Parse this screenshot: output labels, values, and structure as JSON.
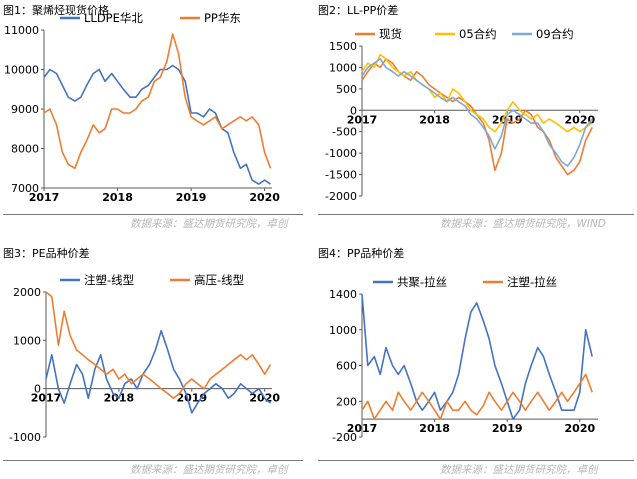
{
  "panels": [
    {
      "caption": "图1：聚烯烃现货价格",
      "source": "数据来源：盛达期货研究院，卓创"
    },
    {
      "caption": "图2：LL-PP价差",
      "source": "数据来源：盛达期货研究院，WIND"
    },
    {
      "caption": "图3：PE品种价差",
      "source": "数据来源：盛达期货研究院，卓创"
    },
    {
      "caption": "图4：PP品种价差",
      "source": "数据来源：盛达期货研究院，卓创"
    }
  ],
  "chart_data": [
    {
      "type": "line",
      "title": "",
      "ylim": [
        7000,
        11000
      ],
      "yticks": [
        7000,
        8000,
        9000,
        10000,
        11000
      ],
      "xlim": [
        2017,
        2020.1
      ],
      "xticks": [
        2017,
        2018,
        2019,
        2020
      ],
      "legend_position": "top",
      "series": [
        {
          "name": "LLDPE华北",
          "color": "#4472C4",
          "x": [
            2017.0,
            2017.08,
            2017.17,
            2017.25,
            2017.33,
            2017.42,
            2017.5,
            2017.58,
            2017.67,
            2017.75,
            2017.83,
            2017.92,
            2018.0,
            2018.08,
            2018.17,
            2018.25,
            2018.33,
            2018.42,
            2018.5,
            2018.58,
            2018.67,
            2018.75,
            2018.83,
            2018.92,
            2019.0,
            2019.08,
            2019.17,
            2019.25,
            2019.33,
            2019.42,
            2019.5,
            2019.58,
            2019.67,
            2019.75,
            2019.83,
            2019.92,
            2020.0,
            2020.08
          ],
          "y": [
            9800,
            10000,
            9900,
            9600,
            9300,
            9200,
            9300,
            9600,
            9900,
            10000,
            9700,
            9900,
            9700,
            9500,
            9300,
            9300,
            9500,
            9600,
            9800,
            10000,
            10000,
            10100,
            10000,
            9700,
            8900,
            8900,
            8800,
            9000,
            8900,
            8500,
            8400,
            7900,
            7500,
            7600,
            7200,
            7100,
            7200,
            7100
          ]
        },
        {
          "name": "PP华东",
          "color": "#ED7D31",
          "x": [
            2017.0,
            2017.08,
            2017.17,
            2017.25,
            2017.33,
            2017.42,
            2017.5,
            2017.58,
            2017.67,
            2017.75,
            2017.83,
            2017.92,
            2018.0,
            2018.08,
            2018.17,
            2018.25,
            2018.33,
            2018.42,
            2018.5,
            2018.58,
            2018.67,
            2018.75,
            2018.83,
            2018.92,
            2019.0,
            2019.08,
            2019.17,
            2019.25,
            2019.33,
            2019.42,
            2019.5,
            2019.58,
            2019.67,
            2019.75,
            2019.83,
            2019.92,
            2020.0,
            2020.08
          ],
          "y": [
            8900,
            9000,
            8600,
            7900,
            7600,
            7500,
            7900,
            8200,
            8600,
            8400,
            8500,
            9000,
            9000,
            8900,
            8900,
            9000,
            9200,
            9300,
            9700,
            9800,
            10200,
            10900,
            10400,
            9300,
            8800,
            8700,
            8600,
            8700,
            8800,
            8500,
            8600,
            8700,
            8800,
            8700,
            8800,
            8600,
            7900,
            7500
          ]
        }
      ]
    },
    {
      "type": "line",
      "title": "",
      "ylim": [
        -2000,
        1500
      ],
      "yticks": [
        -2000,
        -1500,
        -1000,
        -500,
        0,
        500,
        1000,
        1500
      ],
      "xlim": [
        2017,
        2020.25
      ],
      "xticks": [
        2017,
        2018,
        2019,
        2020
      ],
      "legend_position": "top",
      "series": [
        {
          "name": "现货",
          "color": "#ED7D31",
          "x": [
            2017.0,
            2017.08,
            2017.17,
            2017.25,
            2017.33,
            2017.42,
            2017.5,
            2017.58,
            2017.67,
            2017.75,
            2017.83,
            2017.92,
            2018.0,
            2018.08,
            2018.17,
            2018.25,
            2018.33,
            2018.42,
            2018.5,
            2018.58,
            2018.67,
            2018.75,
            2018.83,
            2018.92,
            2019.0,
            2019.08,
            2019.17,
            2019.25,
            2019.33,
            2019.42,
            2019.5,
            2019.58,
            2019.67,
            2019.75,
            2019.83,
            2019.92,
            2020.0,
            2020.08,
            2020.17
          ],
          "y": [
            700,
            900,
            1100,
            1000,
            1200,
            1100,
            900,
            800,
            700,
            900,
            800,
            600,
            500,
            400,
            300,
            200,
            300,
            200,
            100,
            -100,
            -300,
            -700,
            -1400,
            -1000,
            -200,
            -300,
            -200,
            0,
            -100,
            -400,
            -500,
            -700,
            -1100,
            -1300,
            -1500,
            -1400,
            -1200,
            -700,
            -400
          ]
        },
        {
          "name": "05合约",
          "color": "#FFC000",
          "x": [
            2017.0,
            2017.08,
            2017.17,
            2017.25,
            2017.33,
            2017.42,
            2017.5,
            2017.58,
            2017.67,
            2017.75,
            2017.83,
            2017.92,
            2018.0,
            2018.08,
            2018.17,
            2018.25,
            2018.33,
            2018.42,
            2018.5,
            2018.58,
            2018.67,
            2018.75,
            2018.83,
            2018.92,
            2019.0,
            2019.08,
            2019.17,
            2019.25,
            2019.33,
            2019.42,
            2019.5,
            2019.58,
            2019.67,
            2019.75,
            2019.83,
            2019.92,
            2020.0,
            2020.08,
            2020.17
          ],
          "y": [
            900,
            1100,
            1000,
            1300,
            1200,
            1000,
            900,
            800,
            900,
            700,
            600,
            500,
            300,
            400,
            200,
            500,
            400,
            200,
            0,
            -100,
            -200,
            -400,
            -500,
            -300,
            0,
            200,
            0,
            -100,
            -200,
            -100,
            -300,
            -200,
            -300,
            -400,
            -500,
            -400,
            -500,
            -400,
            -300
          ]
        },
        {
          "name": "09合约",
          "color": "#7FA7D8",
          "x": [
            2017.0,
            2017.08,
            2017.17,
            2017.25,
            2017.33,
            2017.42,
            2017.5,
            2017.58,
            2017.67,
            2017.75,
            2017.83,
            2017.92,
            2018.0,
            2018.08,
            2018.17,
            2018.25,
            2018.33,
            2018.42,
            2018.5,
            2018.58,
            2018.67,
            2018.75,
            2018.83,
            2018.92,
            2019.0,
            2019.08,
            2019.17,
            2019.25,
            2019.33,
            2019.42,
            2019.5,
            2019.58,
            2019.67,
            2019.75,
            2019.83,
            2019.92,
            2020.0,
            2020.08,
            2020.17
          ],
          "y": [
            800,
            1000,
            1100,
            1200,
            1000,
            900,
            800,
            900,
            800,
            700,
            600,
            500,
            400,
            300,
            200,
            300,
            200,
            100,
            -100,
            -200,
            -400,
            -600,
            -900,
            -600,
            -100,
            0,
            -100,
            -200,
            -300,
            -300,
            -500,
            -800,
            -1000,
            -1200,
            -1300,
            -1100,
            -800,
            -400,
            -200
          ]
        }
      ]
    },
    {
      "type": "line",
      "title": "",
      "ylim": [
        -1000,
        2000
      ],
      "yticks": [
        -1000,
        0,
        1000,
        2000
      ],
      "xlim": [
        2017,
        2020.1
      ],
      "xticks": [
        2017,
        2018,
        2019,
        2020
      ],
      "legend_position": "top",
      "series": [
        {
          "name": "注塑-线型",
          "color": "#4472C4",
          "x": [
            2017.0,
            2017.08,
            2017.17,
            2017.25,
            2017.33,
            2017.42,
            2017.5,
            2017.58,
            2017.67,
            2017.75,
            2017.83,
            2017.92,
            2018.0,
            2018.08,
            2018.17,
            2018.25,
            2018.33,
            2018.42,
            2018.5,
            2018.58,
            2018.67,
            2018.75,
            2018.83,
            2018.92,
            2019.0,
            2019.08,
            2019.17,
            2019.25,
            2019.33,
            2019.42,
            2019.5,
            2019.58,
            2019.67,
            2019.75,
            2019.83,
            2019.92,
            2020.0,
            2020.08
          ],
          "y": [
            200,
            700,
            0,
            -300,
            100,
            500,
            300,
            -200,
            400,
            700,
            200,
            -100,
            -200,
            100,
            200,
            0,
            300,
            500,
            800,
            1200,
            800,
            400,
            200,
            -100,
            -500,
            -300,
            -100,
            0,
            100,
            0,
            -200,
            -100,
            100,
            0,
            -100,
            0,
            -200,
            -300
          ]
        },
        {
          "name": "高压-线型",
          "color": "#ED7D31",
          "x": [
            2017.0,
            2017.08,
            2017.17,
            2017.25,
            2017.33,
            2017.42,
            2017.5,
            2017.58,
            2017.67,
            2017.75,
            2017.83,
            2017.92,
            2018.0,
            2018.08,
            2018.17,
            2018.25,
            2018.33,
            2018.42,
            2018.5,
            2018.58,
            2018.67,
            2018.75,
            2018.83,
            2018.92,
            2019.0,
            2019.08,
            2019.17,
            2019.25,
            2019.33,
            2019.42,
            2019.5,
            2019.58,
            2019.67,
            2019.75,
            2019.83,
            2019.92,
            2020.0,
            2020.08
          ],
          "y": [
            2000,
            1900,
            900,
            1600,
            1100,
            800,
            700,
            600,
            500,
            400,
            300,
            400,
            200,
            300,
            100,
            200,
            300,
            200,
            100,
            0,
            -100,
            -200,
            -100,
            100,
            200,
            100,
            0,
            200,
            300,
            400,
            500,
            600,
            700,
            600,
            700,
            500,
            300,
            500
          ]
        }
      ]
    },
    {
      "type": "line",
      "title": "",
      "ylim": [
        -200,
        1400
      ],
      "yticks": [
        -200,
        200,
        600,
        1000,
        1400
      ],
      "xlim": [
        2017,
        2020.25
      ],
      "xticks": [
        2017,
        2018,
        2019,
        2020
      ],
      "legend_position": "top",
      "series": [
        {
          "name": "共聚-拉丝",
          "color": "#4472C4",
          "x": [
            2017.0,
            2017.08,
            2017.17,
            2017.25,
            2017.33,
            2017.42,
            2017.5,
            2017.58,
            2017.67,
            2017.75,
            2017.83,
            2017.92,
            2018.0,
            2018.08,
            2018.17,
            2018.25,
            2018.33,
            2018.42,
            2018.5,
            2018.58,
            2018.67,
            2018.75,
            2018.83,
            2018.92,
            2019.0,
            2019.08,
            2019.17,
            2019.25,
            2019.33,
            2019.42,
            2019.5,
            2019.58,
            2019.67,
            2019.75,
            2019.83,
            2019.92,
            2020.0,
            2020.08,
            2020.17
          ],
          "y": [
            1400,
            600,
            700,
            500,
            800,
            600,
            500,
            600,
            400,
            200,
            100,
            200,
            300,
            100,
            200,
            300,
            500,
            900,
            1200,
            1300,
            1100,
            900,
            600,
            400,
            200,
            0,
            100,
            400,
            600,
            800,
            700,
            500,
            300,
            100,
            100,
            100,
            300,
            1000,
            700
          ]
        },
        {
          "name": "注塑-拉丝",
          "color": "#ED7D31",
          "x": [
            2017.0,
            2017.08,
            2017.17,
            2017.25,
            2017.33,
            2017.42,
            2017.5,
            2017.58,
            2017.67,
            2017.75,
            2017.83,
            2017.92,
            2018.0,
            2018.08,
            2018.17,
            2018.25,
            2018.33,
            2018.42,
            2018.5,
            2018.58,
            2018.67,
            2018.75,
            2018.83,
            2018.92,
            2019.0,
            2019.08,
            2019.17,
            2019.25,
            2019.33,
            2019.42,
            2019.5,
            2019.58,
            2019.67,
            2019.75,
            2019.83,
            2019.92,
            2020.0,
            2020.08,
            2020.17
          ],
          "y": [
            100,
            200,
            0,
            100,
            200,
            100,
            300,
            200,
            100,
            200,
            300,
            200,
            100,
            0,
            200,
            100,
            100,
            200,
            100,
            50,
            150,
            300,
            200,
            100,
            200,
            300,
            200,
            100,
            200,
            300,
            200,
            100,
            200,
            300,
            200,
            300,
            400,
            500,
            300
          ]
        }
      ]
    }
  ]
}
